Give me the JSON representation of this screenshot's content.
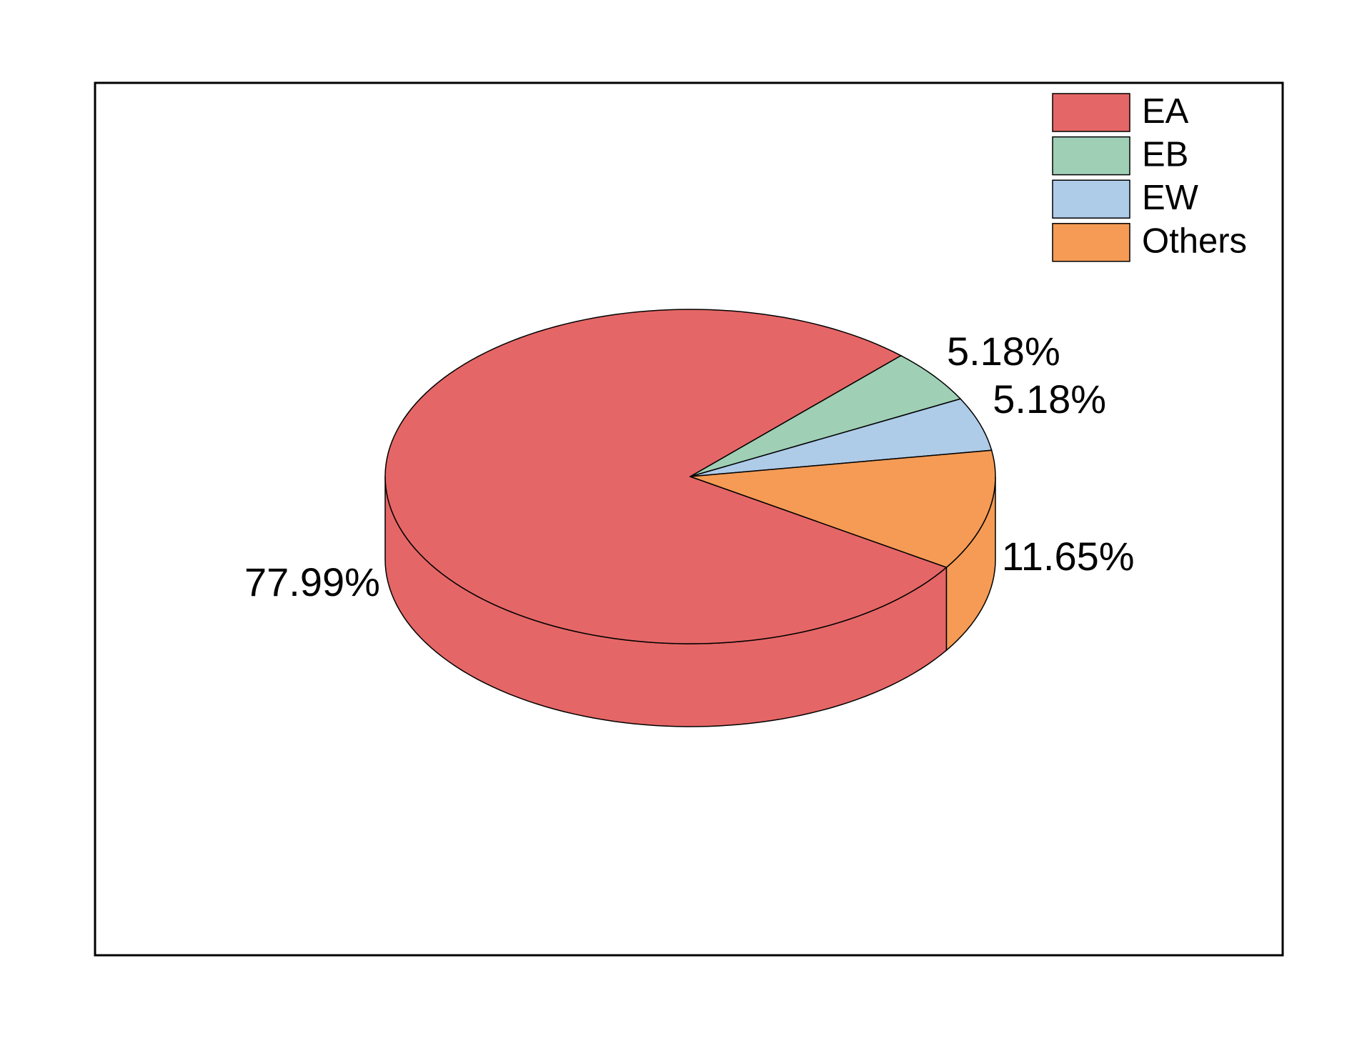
{
  "chart_data": {
    "type": "pie3d",
    "categories": [
      "EA",
      "EB",
      "EW",
      "Others"
    ],
    "values": [
      77.99,
      5.18,
      5.18,
      11.65
    ],
    "value_labels": [
      "77.99%",
      "5.18%",
      "5.18%",
      "11.65%"
    ],
    "colors": [
      "#e56666",
      "#9fcfb5",
      "#aecbe8",
      "#f59b55"
    ],
    "legend": "upper right"
  }
}
